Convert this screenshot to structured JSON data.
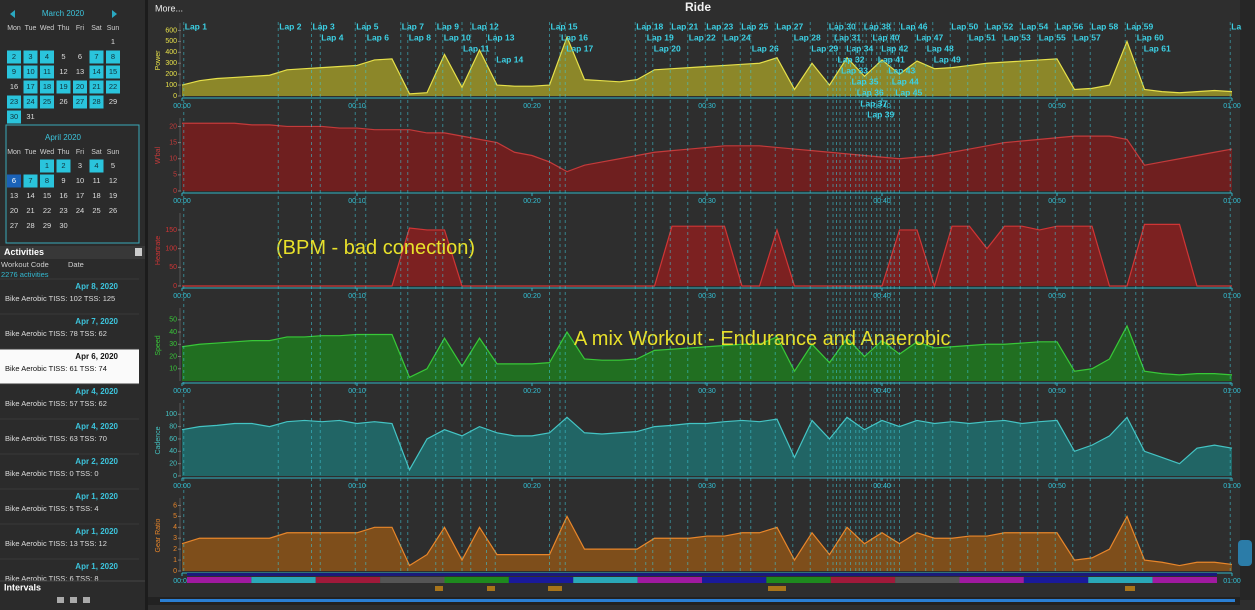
{
  "sidebar": {
    "calendars": [
      {
        "title": "March 2020",
        "weekdays": [
          "Mon",
          "Tue",
          "Wed",
          "Thu",
          "Fri",
          "Sat",
          "Sun"
        ],
        "days": [
          null,
          null,
          null,
          null,
          null,
          null,
          1,
          2,
          3,
          4,
          5,
          6,
          7,
          8,
          9,
          10,
          11,
          12,
          13,
          14,
          15,
          16,
          17,
          18,
          19,
          20,
          21,
          22,
          23,
          24,
          25,
          26,
          27,
          28,
          29,
          30,
          31
        ],
        "highlighted": [
          2,
          3,
          4,
          7,
          8,
          9,
          10,
          11,
          14,
          15,
          17,
          18,
          19,
          20,
          21,
          22,
          23,
          24,
          25,
          27,
          28,
          30
        ],
        "selected": null
      },
      {
        "title": "April 2020",
        "weekdays": [
          "Mon",
          "Tue",
          "Wed",
          "Thu",
          "Fri",
          "Sat",
          "Sun"
        ],
        "days": [
          null,
          null,
          1,
          2,
          3,
          4,
          5,
          6,
          7,
          8,
          9,
          10,
          11,
          12,
          13,
          14,
          15,
          16,
          17,
          18,
          19,
          20,
          21,
          22,
          23,
          24,
          25,
          26,
          27,
          28,
          29,
          30
        ],
        "highlighted": [
          1,
          2,
          4,
          6,
          7,
          8
        ],
        "selected": 6
      }
    ],
    "activities": {
      "title": "Activities",
      "columns": [
        "Workout Code",
        "Date"
      ],
      "count": "2276 activities",
      "items": [
        {
          "date": "Apr 8, 2020",
          "summary": "Bike Aerobic TISS: 102 TSS: 125",
          "selected": false
        },
        {
          "date": "Apr 7, 2020",
          "summary": "Bike Aerobic TISS: 78 TSS: 62",
          "selected": false
        },
        {
          "date": "Apr 6, 2020",
          "summary": "Bike Aerobic TISS: 61 TSS: 74",
          "selected": true
        },
        {
          "date": "Apr 4, 2020",
          "summary": "Bike Aerobic TISS: 57 TSS: 62",
          "selected": false
        },
        {
          "date": "Apr 4, 2020",
          "summary": "Bike Aerobic TISS: 63 TSS: 70",
          "selected": false
        },
        {
          "date": "Apr 2, 2020",
          "summary": "Bike Aerobic TISS: 0 TSS: 0",
          "selected": false
        },
        {
          "date": "Apr 1, 2020",
          "summary": "Bike Aerobic TISS: 5 TSS: 4",
          "selected": false
        },
        {
          "date": "Apr 1, 2020",
          "summary": "Bike Aerobic TISS: 13 TSS: 12",
          "selected": false
        },
        {
          "date": "Apr 1, 2020",
          "summary": "Bike Aerobic TISS: 6 TSS: 8",
          "selected": false
        }
      ]
    },
    "intervals": {
      "title": "Intervals"
    }
  },
  "header": {
    "more": "More...",
    "title": "Ride"
  },
  "charts": {
    "xlim": [
      0,
      60
    ],
    "time_ticks": [
      {
        "value": 0,
        "label": "00:00"
      },
      {
        "value": 10,
        "label": "00:10"
      },
      {
        "value": 20,
        "label": "00:20"
      },
      {
        "value": 30,
        "label": "00:30"
      },
      {
        "value": 40,
        "label": "00:40"
      },
      {
        "value": 50,
        "label": "00:50"
      },
      {
        "value": 60,
        "label": "01:00"
      }
    ],
    "sample_minutes": [
      0,
      1,
      2,
      3,
      4,
      5,
      6,
      7,
      8,
      9,
      10,
      11,
      12,
      13,
      14,
      15,
      16,
      17,
      18,
      19,
      20,
      21,
      22,
      23,
      24,
      25,
      26,
      27,
      28,
      29,
      30,
      31,
      32,
      33,
      34,
      35,
      36,
      37,
      38,
      39,
      40,
      41,
      42,
      43,
      44,
      45,
      46,
      47,
      48,
      49,
      50,
      51,
      52,
      53,
      54,
      55,
      56,
      57,
      58,
      59,
      60
    ],
    "laps": [
      {
        "label": "Lap 1",
        "time": 0.1
      },
      {
        "label": "Lap 2",
        "time": 5.5
      },
      {
        "label": "Lap 3",
        "time": 7.4
      },
      {
        "label": "Lap 4",
        "time": 7.9
      },
      {
        "label": "Lap 5",
        "time": 9.9
      },
      {
        "label": "Lap 6",
        "time": 10.5
      },
      {
        "label": "Lap 7",
        "time": 12.5
      },
      {
        "label": "Lap 8",
        "time": 12.9
      },
      {
        "label": "Lap 9",
        "time": 14.5
      },
      {
        "label": "Lap 10",
        "time": 14.9
      },
      {
        "label": "Lap 11",
        "time": 16.0
      },
      {
        "label": "Lap 12",
        "time": 16.5
      },
      {
        "label": "Lap 13",
        "time": 17.4
      },
      {
        "label": "Lap 14",
        "time": 17.9
      },
      {
        "label": "Lap 15",
        "time": 21.0
      },
      {
        "label": "Lap 16",
        "time": 21.6
      },
      {
        "label": "Lap 17",
        "time": 21.9
      },
      {
        "label": "Lap 18",
        "time": 25.9
      },
      {
        "label": "Lap 19",
        "time": 26.5
      },
      {
        "label": "Lap 20",
        "time": 26.9
      },
      {
        "label": "Lap 21",
        "time": 27.9
      },
      {
        "label": "Lap 22",
        "time": 28.9
      },
      {
        "label": "Lap 23",
        "time": 29.9
      },
      {
        "label": "Lap 24",
        "time": 30.9
      },
      {
        "label": "Lap 25",
        "time": 31.9
      },
      {
        "label": "Lap 26",
        "time": 32.5
      },
      {
        "label": "Lap 27",
        "time": 33.9
      },
      {
        "label": "Lap 28",
        "time": 34.9
      },
      {
        "label": "Lap 29",
        "time": 35.9
      },
      {
        "label": "Lap 30",
        "time": 36.9
      },
      {
        "label": "Lap 31",
        "time": 37.2
      },
      {
        "label": "Lap 32",
        "time": 37.4
      },
      {
        "label": "Lap 33",
        "time": 37.6
      },
      {
        "label": "Lap 34",
        "time": 37.9
      },
      {
        "label": "Lap 35",
        "time": 38.2
      },
      {
        "label": "Lap 36",
        "time": 38.5
      },
      {
        "label": "Lap 37",
        "time": 38.7
      },
      {
        "label": "Lap 38",
        "time": 38.9
      },
      {
        "label": "Lap 39",
        "time": 39.1
      },
      {
        "label": "Lap 40",
        "time": 39.4
      },
      {
        "label": "Lap 41",
        "time": 39.7
      },
      {
        "label": "Lap 42",
        "time": 39.9
      },
      {
        "label": "Lap 43",
        "time": 40.3
      },
      {
        "label": "Lap 44",
        "time": 40.5
      },
      {
        "label": "Lap 45",
        "time": 40.7
      },
      {
        "label": "Lap 46",
        "time": 41.0
      },
      {
        "label": "Lap 47",
        "time": 41.9
      },
      {
        "label": "Lap 48",
        "time": 42.5
      },
      {
        "label": "Lap 49",
        "time": 42.9
      },
      {
        "label": "Lap 50",
        "time": 43.9
      },
      {
        "label": "Lap 51",
        "time": 44.9
      },
      {
        "label": "Lap 52",
        "time": 45.9
      },
      {
        "label": "Lap 53",
        "time": 46.9
      },
      {
        "label": "Lap 54",
        "time": 47.9
      },
      {
        "label": "Lap 55",
        "time": 48.9
      },
      {
        "label": "Lap 56",
        "time": 49.9
      },
      {
        "label": "Lap 57",
        "time": 50.9
      },
      {
        "label": "Lap 58",
        "time": 51.9
      },
      {
        "label": "Lap 59",
        "time": 53.9
      },
      {
        "label": "Lap 60",
        "time": 54.5
      },
      {
        "label": "Lap 61",
        "time": 54.9
      },
      {
        "label": "La",
        "time": 59.9
      }
    ],
    "panels": [
      {
        "axis_label": "Power",
        "line": "#e6e04a",
        "fill": "#9c9628",
        "ylim": [
          0,
          650
        ],
        "yticks": [
          0,
          100,
          200,
          300,
          400,
          500,
          600
        ],
        "values": [
          100,
          140,
          160,
          170,
          180,
          190,
          240,
          250,
          260,
          270,
          280,
          330,
          340,
          20,
          30,
          380,
          80,
          420,
          100,
          90,
          90,
          100,
          540,
          150,
          140,
          130,
          150,
          240,
          250,
          260,
          270,
          280,
          290,
          300,
          350,
          60,
          300,
          100,
          350,
          180,
          330,
          200,
          320,
          250,
          260,
          280,
          300,
          310,
          320,
          330,
          340,
          60,
          70,
          100,
          500,
          60,
          40,
          30,
          40,
          50,
          40
        ]
      },
      {
        "axis_label": "W'bal",
        "line": "#c43a3a",
        "fill": "#7a1c1c",
        "ylim": [
          0,
          22
        ],
        "yticks": [
          0,
          5,
          10,
          15,
          20
        ],
        "values": [
          21,
          21,
          21,
          21,
          20.5,
          20.5,
          20,
          20,
          20,
          19.5,
          19.5,
          19,
          19,
          19,
          18,
          18,
          17,
          16,
          15,
          12,
          11,
          9,
          6,
          8,
          9,
          10,
          11,
          12,
          12.5,
          13,
          13.5,
          14,
          14,
          14,
          13.5,
          13,
          12.5,
          12,
          11.5,
          11,
          10.5,
          10,
          10.5,
          11,
          12,
          13,
          14,
          15,
          15.5,
          16,
          16.5,
          17,
          17,
          17,
          16,
          8,
          9,
          10,
          11,
          12,
          13
        ]
      },
      {
        "axis_label": "Heartrate",
        "line": "#d03535",
        "fill": "#8a1f1f",
        "ylim": [
          0,
          190
        ],
        "yticks": [
          0,
          50,
          100,
          150
        ],
        "annotation": "(BPM - bad conection)",
        "values": [
          0,
          0,
          0,
          0,
          0,
          0,
          0,
          0,
          0,
          0,
          0,
          0,
          0,
          155,
          150,
          150,
          0,
          0,
          0,
          0,
          0,
          0,
          0,
          0,
          0,
          0,
          0,
          0,
          160,
          160,
          160,
          160,
          0,
          0,
          150,
          0,
          0,
          0,
          0,
          0,
          0,
          150,
          150,
          0,
          160,
          160,
          100,
          160,
          160,
          150,
          160,
          160,
          160,
          0,
          0,
          165,
          165,
          165,
          0,
          0,
          0
        ]
      },
      {
        "axis_label": "Speed",
        "line": "#38c838",
        "fill": "#1e7a1e",
        "ylim": [
          0,
          58
        ],
        "yticks": [
          10,
          20,
          30,
          40,
          50
        ],
        "annotation": "A mix Workout - Endurance and Anaerobic",
        "values": [
          28,
          30,
          31,
          32,
          33,
          33,
          36,
          36,
          37,
          37,
          38,
          38,
          38,
          3,
          10,
          35,
          12,
          35,
          14,
          14,
          14,
          15,
          40,
          18,
          17,
          17,
          18,
          25,
          26,
          27,
          28,
          29,
          30,
          30,
          36,
          8,
          30,
          15,
          35,
          20,
          33,
          22,
          32,
          27,
          28,
          29,
          30,
          30,
          31,
          32,
          32,
          8,
          10,
          18,
          45,
          8,
          6,
          5,
          6,
          6,
          5
        ]
      },
      {
        "axis_label": "Cadence",
        "line": "#44c4c4",
        "fill": "#1f6e6e",
        "ylim": [
          0,
          115
        ],
        "yticks": [
          0,
          20,
          40,
          60,
          80,
          100
        ],
        "values": [
          75,
          80,
          82,
          85,
          85,
          80,
          88,
          90,
          88,
          90,
          85,
          88,
          85,
          10,
          60,
          75,
          65,
          80,
          70,
          65,
          65,
          70,
          95,
          70,
          68,
          70,
          72,
          80,
          82,
          85,
          85,
          88,
          90,
          88,
          92,
          30,
          90,
          60,
          95,
          75,
          90,
          80,
          90,
          85,
          88,
          85,
          88,
          90,
          85,
          88,
          90,
          40,
          50,
          65,
          95,
          40,
          30,
          20,
          45,
          50,
          45
        ]
      },
      {
        "axis_label": "Gear Ratio",
        "line": "#e8862a",
        "fill": "#8c5418",
        "ylim": [
          0,
          6.5
        ],
        "yticks": [
          0,
          1,
          2,
          3,
          4,
          5,
          6
        ],
        "values": [
          2.5,
          3,
          3,
          3,
          3,
          3,
          3.5,
          3.5,
          3.5,
          3.5,
          3.5,
          4,
          4,
          0.5,
          1.5,
          4,
          1,
          4,
          1.5,
          1.5,
          1.5,
          1.5,
          5,
          2,
          2,
          2,
          2,
          3,
          3,
          3,
          3.2,
          3.2,
          3.5,
          3.5,
          4,
          1,
          3.5,
          1.5,
          4,
          2.5,
          3.5,
          2.5,
          3.5,
          3,
          3,
          3.2,
          3.2,
          3.5,
          3.5,
          3.5,
          3.5,
          1,
          1.2,
          2,
          5,
          1,
          0.8,
          0.5,
          0.8,
          0.8,
          0.6
        ]
      }
    ]
  }
}
